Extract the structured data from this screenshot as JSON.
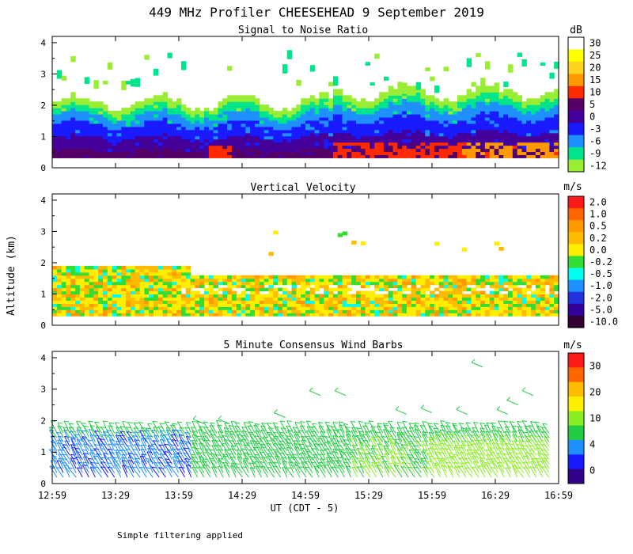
{
  "title": "449 MHz Profiler CHEESEHEAD  9 September 2019",
  "footnote": "Simple filtering applied",
  "ylabel": "Altitude (km)",
  "xlabel": "UT  (CDT - 5)",
  "x_ticks": [
    "12:59",
    "13:29",
    "13:59",
    "14:29",
    "14:59",
    "15:29",
    "15:59",
    "16:29",
    "16:59"
  ],
  "y_ticks": [
    "0",
    "1",
    "2",
    "3",
    "4"
  ],
  "chart_data": [
    {
      "type": "heatmap",
      "title": "Signal to Noise Ratio",
      "units": "dB",
      "x": [
        "12:59",
        "16:59"
      ],
      "ylim": [
        0,
        4
      ],
      "colorbar": {
        "labels": [
          "30",
          "25",
          "20",
          "15",
          "10",
          "5",
          "0",
          "-3",
          "-6",
          "-9",
          "-12"
        ],
        "colors": [
          "#ffffff",
          "#ffff00",
          "#ffd21e",
          "#ff9900",
          "#ff2a00",
          "#550066",
          "#440099",
          "#1a1aff",
          "#1e90ff",
          "#00e58c",
          "#99ee33"
        ]
      }
    },
    {
      "type": "heatmap",
      "title": "Vertical Velocity",
      "units": "m/s",
      "x": [
        "12:59",
        "16:59"
      ],
      "ylim": [
        0,
        4
      ],
      "colorbar": {
        "labels": [
          "2.0",
          "1.0",
          "0.5",
          "0.2",
          "0.0",
          "-0.2",
          "-0.5",
          "-1.0",
          "-2.0",
          "-5.0",
          "-10.0"
        ],
        "colors": [
          "#ff1a1a",
          "#ff6600",
          "#ff9900",
          "#ffbb00",
          "#ffee00",
          "#33dd33",
          "#00ffee",
          "#1e90ff",
          "#2233dd",
          "#330099",
          "#330033"
        ]
      }
    },
    {
      "type": "scatter",
      "title": "5 Minute Consensus Wind Barbs",
      "units": "m/s",
      "x": [
        "12:59",
        "16:59"
      ],
      "ylim": [
        0,
        4
      ],
      "colorbar": {
        "labels": [
          "30",
          "20",
          "10",
          "4",
          "0"
        ],
        "colors": [
          "#ff1a1a",
          "#ff6600",
          "#ffbb00",
          "#ffee00",
          "#88ee22",
          "#22cc44",
          "#1e90ff",
          "#1a1aff",
          "#330088"
        ]
      }
    }
  ]
}
